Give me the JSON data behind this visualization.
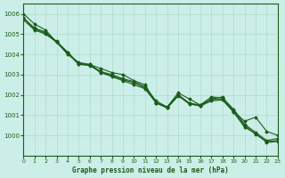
{
  "title": "Graphe pression niveau de la mer (hPa)",
  "xlabel": "",
  "ylabel": "",
  "xlim": [
    0,
    23
  ],
  "ylim": [
    999,
    1006.5
  ],
  "yticks": [
    1000,
    1001,
    1002,
    1003,
    1004,
    1005,
    1006
  ],
  "xticks": [
    0,
    1,
    2,
    3,
    4,
    5,
    6,
    7,
    8,
    9,
    10,
    11,
    12,
    13,
    14,
    15,
    16,
    17,
    18,
    19,
    20,
    21,
    22,
    23
  ],
  "bg_color": "#cceee8",
  "line_color": "#1a5c1a",
  "grid_color": "#aaddcc",
  "series": [
    [
      1006.0,
      1005.5,
      1005.2,
      1004.6,
      1004.0,
      1003.6,
      1003.5,
      1003.3,
      1003.1,
      1003.0,
      1002.7,
      1002.5,
      1001.6,
      1001.4,
      1002.1,
      1001.8,
      1001.5,
      1001.8,
      1001.9,
      1001.2,
      1000.7,
      1000.9,
      1000.2,
      1000.0
    ],
    [
      1005.8,
      1005.3,
      1005.1,
      1004.6,
      1004.1,
      1003.55,
      1003.5,
      1003.15,
      1003.0,
      1002.8,
      1002.65,
      1002.4,
      1001.7,
      1001.4,
      1002.0,
      1001.6,
      1001.5,
      1001.9,
      1001.85,
      1001.3,
      1000.55,
      1000.15,
      999.75,
      999.85
    ],
    [
      1005.7,
      1005.2,
      1005.0,
      1004.6,
      1004.05,
      1003.5,
      1003.45,
      1003.1,
      1002.9,
      1002.7,
      1002.5,
      1002.3,
      1001.6,
      1001.35,
      1001.95,
      1001.55,
      1001.45,
      1001.7,
      1001.75,
      1001.15,
      1000.4,
      1000.1,
      999.65,
      999.7
    ],
    [
      1005.8,
      1005.25,
      1005.05,
      1004.65,
      1004.1,
      1003.52,
      1003.48,
      1003.12,
      1002.95,
      1002.75,
      1002.6,
      1002.35,
      1001.62,
      1001.38,
      1001.98,
      1001.57,
      1001.47,
      1001.78,
      1001.8,
      1001.2,
      1000.5,
      1000.05,
      999.7,
      999.75
    ]
  ]
}
